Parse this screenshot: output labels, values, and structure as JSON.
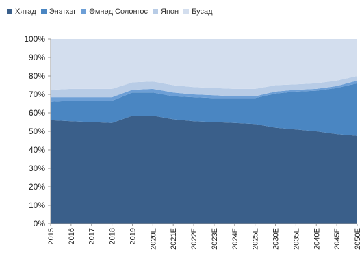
{
  "chart_data": {
    "type": "area",
    "stacked": true,
    "title": "",
    "xlabel": "",
    "ylabel": "",
    "ylim": [
      0,
      100
    ],
    "yticks": [
      "0%",
      "10%",
      "20%",
      "30%",
      "40%",
      "50%",
      "60%",
      "70%",
      "80%",
      "90%",
      "100%"
    ],
    "grid": false,
    "legend_position": "top",
    "categories": [
      "2015",
      "2016",
      "2017",
      "2018",
      "2019",
      "2020E",
      "2021E",
      "2022E",
      "2023E",
      "2024E",
      "2025E",
      "2030E",
      "2035E",
      "2040E",
      "2045E",
      "2050E"
    ],
    "series": [
      {
        "name": "Хятад",
        "color": "#3a5f8a",
        "values": [
          56,
          55.5,
          55,
          54.5,
          58.5,
          58.5,
          56.5,
          55.5,
          55,
          54.5,
          54,
          52,
          51,
          50,
          48.5,
          47.5
        ]
      },
      {
        "name": "Энэтхэг",
        "color": "#4a86c2",
        "values": [
          10,
          11,
          11.5,
          12,
          12.5,
          12.5,
          12.5,
          13,
          13,
          13.5,
          14,
          18.5,
          20.5,
          22,
          25,
          28.5
        ]
      },
      {
        "name": "Өмнөд Солонгос",
        "color": "#6d9fd6",
        "values": [
          2.5,
          2,
          2,
          2,
          1.5,
          2,
          2,
          1.5,
          1.5,
          1,
          1,
          1,
          1,
          1,
          1,
          1.5
        ]
      },
      {
        "name": "Япон",
        "color": "#b8cce6",
        "values": [
          4,
          4.5,
          4.5,
          4.5,
          4,
          4,
          4,
          4,
          4,
          4,
          4,
          3.5,
          3,
          3,
          3,
          2.5
        ]
      },
      {
        "name": "Бусад",
        "color": "#d3deee",
        "values": [
          27.5,
          27,
          27,
          27,
          23.5,
          23,
          25,
          26,
          26.5,
          27,
          27,
          25,
          24.5,
          24,
          22.5,
          20
        ]
      }
    ]
  }
}
